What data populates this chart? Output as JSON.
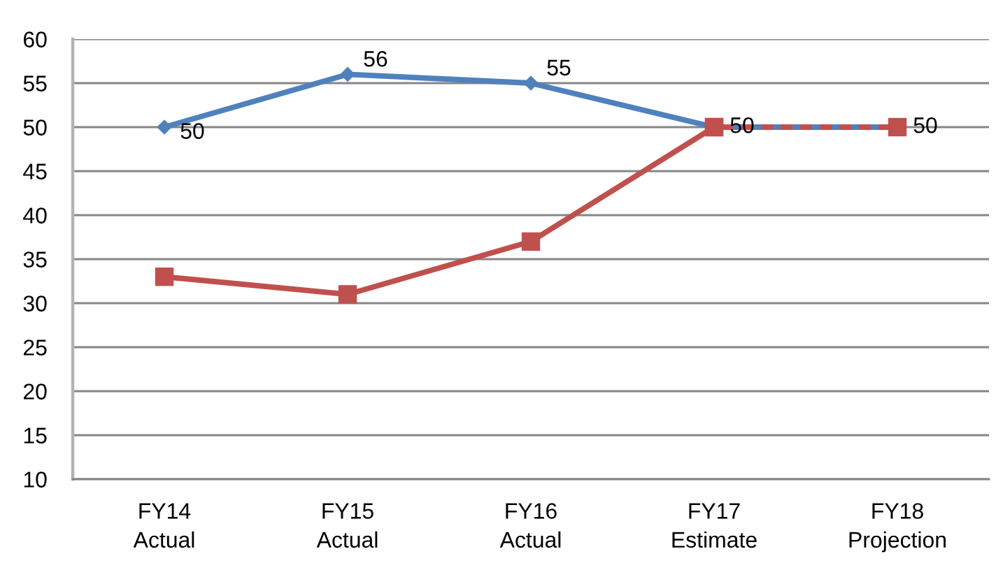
{
  "chart_data": {
    "type": "line",
    "categories": [
      "FY14\nActual",
      "FY15\nActual",
      "FY16\nActual",
      "FY17\nEstimate",
      "FY18\nProjection"
    ],
    "series": [
      {
        "color": "#4f81bd",
        "values": [
          50,
          56,
          55,
          50,
          null
        ],
        "marker": "diamond",
        "line_style": "solid",
        "value_labels": [
          "50",
          "56",
          "55",
          "50",
          null
        ]
      },
      {
        "color": "#4f81bd",
        "values": [
          null,
          null,
          null,
          50,
          50
        ],
        "marker": "diamond",
        "line_style": "dashed",
        "value_labels": [
          null,
          null,
          null,
          null,
          "50"
        ]
      },
      {
        "color": "#c0504d",
        "values": [
          33,
          31,
          37,
          50,
          null
        ],
        "marker": "square",
        "line_style": "solid"
      },
      {
        "color": "#c0504d",
        "values": [
          null,
          null,
          null,
          50,
          50
        ],
        "marker": "square",
        "line_style": "dashed"
      }
    ],
    "ylim": [
      10,
      60
    ],
    "yticks": [
      10,
      15,
      20,
      25,
      30,
      35,
      40,
      45,
      50,
      55,
      60
    ],
    "grid": "y"
  }
}
